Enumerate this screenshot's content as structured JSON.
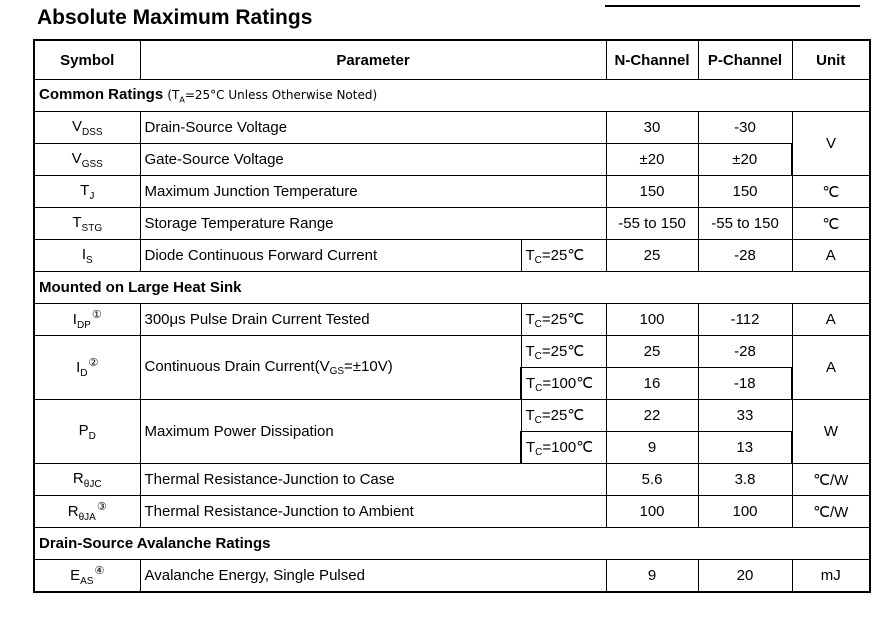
{
  "title": "Absolute Maximum Ratings",
  "headers": {
    "symbol": "Symbol",
    "parameter": "Parameter",
    "n_channel": "N-Channel",
    "p_channel": "P-Channel",
    "unit": "Unit"
  },
  "sections": {
    "common": {
      "label": "Common Ratings",
      "note_open": "(T",
      "note_sub": "A",
      "note_rest": "=25°C Unless Otherwise Noted)"
    },
    "heatsink": {
      "label": "Mounted on Large Heat Sink"
    },
    "avalanche": {
      "label": "Drain-Source Avalanche Ratings"
    }
  },
  "rows": {
    "vdss": {
      "sym": "V",
      "sub": "DSS",
      "sup": "",
      "param": "Drain-Source Voltage",
      "n": "30",
      "p": "-30"
    },
    "vgss": {
      "sym": "V",
      "sub": "GSS",
      "sup": "",
      "param": "Gate-Source Voltage",
      "n": "±20",
      "p": "±20"
    },
    "v_unit": "V",
    "tj": {
      "sym": "T",
      "sub": "J",
      "param": "Maximum Junction Temperature",
      "n": "150",
      "p": "150",
      "unit": "℃"
    },
    "tstg": {
      "sym": "T",
      "sub": "STG",
      "param": "Storage Temperature Range",
      "n": "-55 to 150",
      "p": "-55 to 150",
      "unit": "℃"
    },
    "is": {
      "sym": "I",
      "sub": "S",
      "param": "Diode Continuous Forward Current",
      "cond_pre": "T",
      "cond_sub": "C",
      "cond_post": "=25℃",
      "n": "25",
      "p": "-28",
      "unit": "A"
    },
    "idp": {
      "sym": "I",
      "sub": "DP",
      "sup": "①",
      "param": "300μs Pulse Drain Current Tested",
      "cond_pre": "T",
      "cond_sub": "C",
      "cond_post": "=25℃",
      "n": "100",
      "p": "-112",
      "unit": "A"
    },
    "id": {
      "sym": "I",
      "sub": "D",
      "sup": "②",
      "param_pre": "Continuous Drain Current(V",
      "param_sub": "GS",
      "param_post": "=±10V)",
      "cond1_pre": "T",
      "cond1_sub": "C",
      "cond1_post": "=25℃",
      "n1": "25",
      "p1": "-28",
      "cond2_pre": "T",
      "cond2_sub": "C",
      "cond2_post": "=100℃",
      "n2": "16",
      "p2": "-18",
      "unit": "A"
    },
    "pd": {
      "sym": "P",
      "sub": "D",
      "param": "Maximum Power Dissipation",
      "cond1_pre": "T",
      "cond1_sub": "C",
      "cond1_post": "=25℃",
      "n1": "22",
      "p1": "33",
      "cond2_pre": "T",
      "cond2_sub": "C",
      "cond2_post": "=100℃",
      "n2": "9",
      "p2": "13",
      "unit": "W"
    },
    "rjc": {
      "sym": "R",
      "sub": "θJC",
      "param": "Thermal Resistance-Junction to Case",
      "n": "5.6",
      "p": "3.8",
      "unit": "℃/W"
    },
    "rja": {
      "sym": "R",
      "sub": "θJA",
      "sup": "③",
      "param": "Thermal Resistance-Junction to Ambient",
      "n": "100",
      "p": "100",
      "unit": "℃/W"
    },
    "eas": {
      "sym": "E",
      "sub": "AS",
      "sup": "④",
      "param": "Avalanche Energy, Single Pulsed",
      "n": "9",
      "p": "20",
      "unit": "mJ"
    }
  }
}
